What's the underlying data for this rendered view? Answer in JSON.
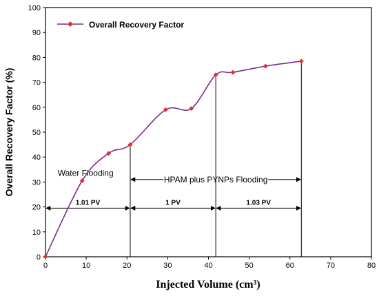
{
  "chart_data": {
    "type": "line",
    "xlabel": "Injected  Volume (cm³)",
    "ylabel": "Overall Recovery Factor (%)",
    "xlim": [
      0,
      80
    ],
    "ylim": [
      0,
      100
    ],
    "x_ticks": [
      0,
      10,
      20,
      30,
      40,
      50,
      60,
      70,
      80
    ],
    "y_ticks": [
      0,
      10,
      20,
      30,
      40,
      50,
      60,
      70,
      80,
      90,
      100
    ],
    "grid": false,
    "legend_position": "top-left",
    "series": [
      {
        "name": "Overall Recovery Factor",
        "color": "#7b2a8c",
        "marker_color": "#e03030",
        "x": [
          0,
          9,
          15.5,
          20.8,
          29.5,
          35.8,
          41.8,
          46,
          54,
          62.8
        ],
        "y": [
          0,
          30.5,
          41.5,
          45,
          59,
          59.5,
          73,
          74,
          76.5,
          78.5
        ]
      }
    ],
    "annotations": {
      "vlines": [
        {
          "x": 20.8,
          "y_to": 45
        },
        {
          "x": 41.8,
          "y_to": 73
        },
        {
          "x": 62.8,
          "y_to": 78.5
        }
      ],
      "water_flooding": {
        "text": "Water Flooding",
        "x": 3,
        "y": 32.5
      },
      "hpam_arrow": {
        "text": "HPAM plus PYNPs Flooding",
        "x1": 20.8,
        "x2": 62.8,
        "y": 31
      },
      "pv_arrows": [
        {
          "text": "1.01 PV",
          "x1": 0,
          "x2": 20.8,
          "y": 19.5
        },
        {
          "text": "1 PV",
          "x1": 20.8,
          "x2": 41.8,
          "y": 19.5
        },
        {
          "text": "1.03 PV",
          "x1": 41.8,
          "x2": 62.8,
          "y": 19.5
        }
      ]
    }
  }
}
